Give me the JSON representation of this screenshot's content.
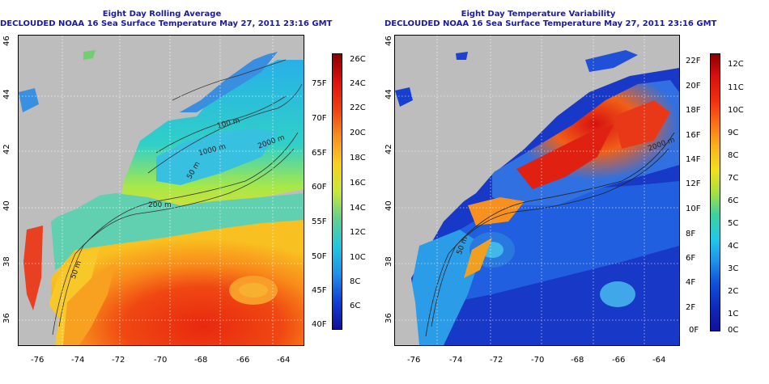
{
  "left": {
    "title_line1": "Eight Day Rolling Average",
    "title_line2": "DECLOUDED NOAA 16 Sea Surface Temperature May 27, 2011 23:16 GMT",
    "colorbar_c": [
      "26C",
      "24C",
      "22C",
      "20C",
      "18C",
      "16C",
      "14C",
      "12C",
      "10C",
      "8C",
      "6C"
    ],
    "colorbar_f": [
      "75F",
      "70F",
      "65F",
      "60F",
      "55F",
      "50F",
      "45F",
      "40F"
    ],
    "contours": [
      "100 m",
      "1000 m",
      "2000 m",
      "50 m",
      "200 m",
      "50 m"
    ]
  },
  "right": {
    "title_line1": "Eight Day Temperature Variability",
    "title_line2": "DECLOUDED NOAA 16 Sea Surface Temperature May 27, 2011 23:16 GMT",
    "colorbar_c": [
      "12C",
      "11C",
      "10C",
      "9C",
      "8C",
      "7C",
      "6C",
      "5C",
      "4C",
      "3C",
      "2C",
      "1C",
      "0C"
    ],
    "colorbar_f": [
      "22F",
      "20F",
      "18F",
      "16F",
      "14F",
      "12F",
      "10F",
      "8F",
      "6F",
      "4F",
      "2F",
      "0F"
    ],
    "contours": [
      "2000 m",
      "50 m"
    ]
  },
  "x_ticks": [
    "-76",
    "-74",
    "-72",
    "-70",
    "-68",
    "-66",
    "-64"
  ],
  "y_ticks": [
    "46",
    "44",
    "42",
    "40",
    "38",
    "36"
  ],
  "colors": {
    "land": "#bdbdbd",
    "title": "#1a1aa8"
  }
}
